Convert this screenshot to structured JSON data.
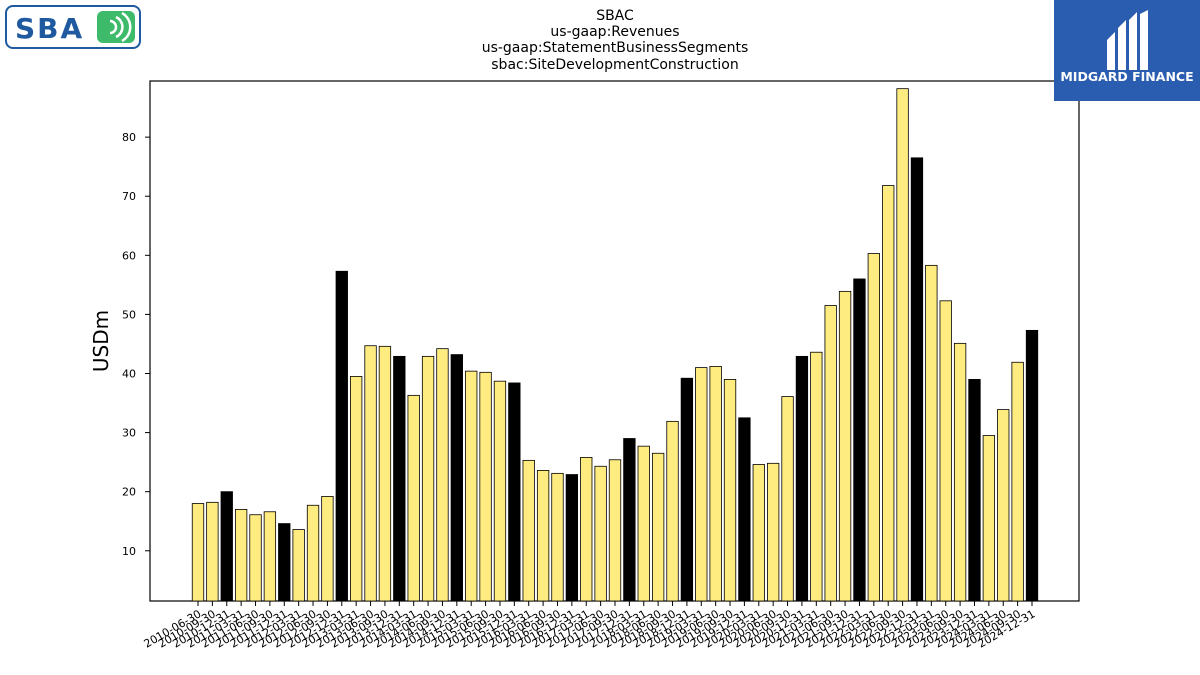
{
  "logos": {
    "company": "SBA",
    "finance": "MIDGARD FINANCE"
  },
  "colors": {
    "bar_fill": "#ffec80",
    "bar_annual": "#000000",
    "edge": "#000000",
    "sba_blue": "#1f5aa0",
    "sba_green": "#3dbb6a",
    "midgard_blue": "#2a5db0"
  },
  "chart_data": {
    "type": "bar",
    "title": [
      "SBAC",
      "us-gaap:Revenues",
      "us-gaap:StatementBusinessSegments",
      "sbac:SiteDevelopmentConstruction"
    ],
    "xlabel": "",
    "ylabel": "USDm",
    "ylim": [
      1.5,
      89.5
    ],
    "yticks": [
      10,
      20,
      30,
      40,
      50,
      60,
      70,
      80
    ],
    "grid": false,
    "categories": [
      "2010-06-30",
      "2010-09-30",
      "2010-12-31",
      "2011-03-31",
      "2011-06-30",
      "2011-09-30",
      "2011-12-31",
      "2012-03-31",
      "2012-06-30",
      "2012-09-30",
      "2012-12-31",
      "2013-03-31",
      "2013-06-30",
      "2013-09-30",
      "2013-12-31",
      "2014-03-31",
      "2014-06-30",
      "2014-09-30",
      "2014-12-31",
      "2015-03-31",
      "2015-06-30",
      "2015-09-30",
      "2015-12-31",
      "2016-03-31",
      "2016-06-30",
      "2016-09-30",
      "2016-12-31",
      "2017-03-31",
      "2017-06-30",
      "2017-09-30",
      "2017-12-31",
      "2018-03-31",
      "2018-06-30",
      "2018-09-30",
      "2018-12-31",
      "2019-03-31",
      "2019-06-30",
      "2019-09-30",
      "2019-12-31",
      "2020-03-31",
      "2020-06-30",
      "2020-09-30",
      "2020-12-31",
      "2021-03-31",
      "2021-06-30",
      "2021-09-30",
      "2021-12-31",
      "2022-03-31",
      "2022-06-30",
      "2022-09-30",
      "2022-12-31",
      "2023-03-31",
      "2023-06-30",
      "2023-09-30",
      "2023-12-31",
      "2024-03-31",
      "2024-06-30",
      "2024-09-30",
      "2024-12-31"
    ],
    "values": [
      18.0,
      18.2,
      20.0,
      17.0,
      16.1,
      16.6,
      14.6,
      13.6,
      17.7,
      19.2,
      57.3,
      39.5,
      44.7,
      44.6,
      42.9,
      36.3,
      42.9,
      44.2,
      43.2,
      40.4,
      40.2,
      38.7,
      38.4,
      25.3,
      23.6,
      23.1,
      22.9,
      25.8,
      24.3,
      25.4,
      29.0,
      27.7,
      26.5,
      31.9,
      39.2,
      41.0,
      41.2,
      39.0,
      32.5,
      24.6,
      24.8,
      36.1,
      42.9,
      43.6,
      51.5,
      53.9,
      56.0,
      60.3,
      71.8,
      88.2,
      76.5,
      58.3,
      52.3,
      45.1,
      39.0,
      29.5,
      33.9,
      41.9,
      47.3
    ],
    "annual": [
      false,
      false,
      true,
      false,
      false,
      false,
      true,
      false,
      false,
      false,
      true,
      false,
      false,
      false,
      true,
      false,
      false,
      false,
      true,
      false,
      false,
      false,
      true,
      false,
      false,
      false,
      true,
      false,
      false,
      false,
      true,
      false,
      false,
      false,
      true,
      false,
      false,
      false,
      true,
      false,
      false,
      false,
      true,
      false,
      false,
      false,
      true,
      false,
      false,
      false,
      true,
      false,
      false,
      false,
      true,
      false,
      false,
      false,
      true
    ]
  }
}
